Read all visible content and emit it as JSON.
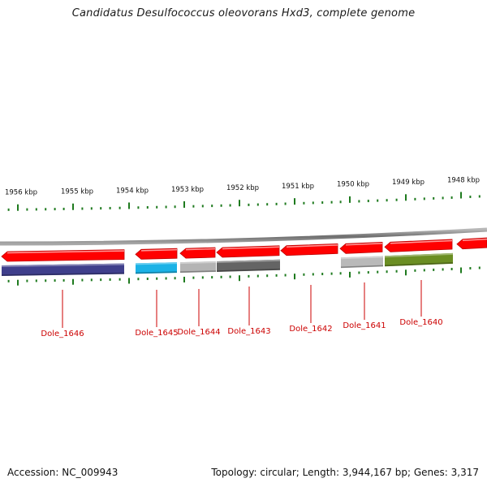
{
  "header": {
    "title": "Candidatus Desulfococcus oleovorans Hxd3, complete genome"
  },
  "footer": {
    "accession": "Accession: NC_009943",
    "topology_info": "Topology: circular; Length: 3,944,167 bp; Genes: 3,317"
  },
  "scale": {
    "labels": [
      "1956 kbp",
      "1955 kbp",
      "1954 kbp",
      "1953 kbp",
      "1952 kbp",
      "1951 kbp",
      "1950 kbp",
      "1949 kbp",
      "1948 kbp"
    ]
  },
  "colors": {
    "gene_arrow": "#ff0000",
    "tick": "#1e7a1e",
    "backbone": "#8c8c8c",
    "locus_label": "#cc0000"
  },
  "loci": [
    {
      "tag": "Dole_1646",
      "color": "#3f3f8c"
    },
    {
      "tag": "Dole_1645",
      "color": "#1ab2e6"
    },
    {
      "tag": "Dole_1644",
      "color": "#b4b4b4"
    },
    {
      "tag": "Dole_1643",
      "color": "#646464"
    },
    {
      "tag": "Dole_1642",
      "color": ""
    },
    {
      "tag": "Dole_1641",
      "color": "#b9b9b9"
    },
    {
      "tag": "Dole_1640",
      "color": "#6b8e23"
    }
  ]
}
